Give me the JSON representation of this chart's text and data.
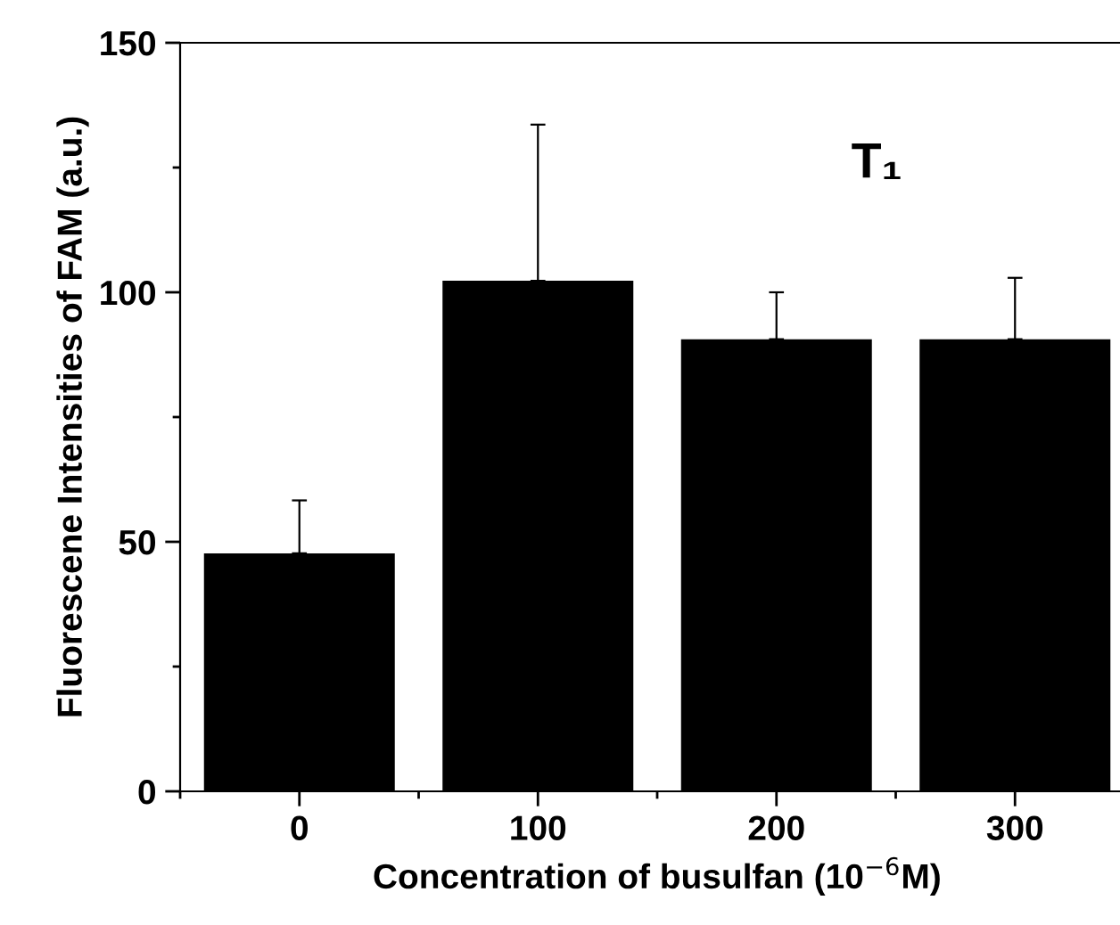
{
  "chart_data": {
    "type": "bar",
    "categories": [
      "0",
      "100",
      "200",
      "300"
    ],
    "values": [
      47.7,
      102.3,
      90.6,
      90.6
    ],
    "errors": [
      [
        47.7,
        58.3
      ],
      [
        102.3,
        133.6
      ],
      [
        90.6,
        100
      ],
      [
        90.6,
        102.9
      ]
    ],
    "color": "#000000",
    "xlabel": "Concentration of busulfan (10$^{−6}$M)",
    "ylabel": "Fluorescene Intensities of FAM (a.u.)",
    "annotations": [
      "T₁"
    ],
    "ylim": [
      0,
      150
    ],
    "yticks": [
      0,
      50,
      100,
      150
    ],
    "grid": false,
    "legend": false
  }
}
